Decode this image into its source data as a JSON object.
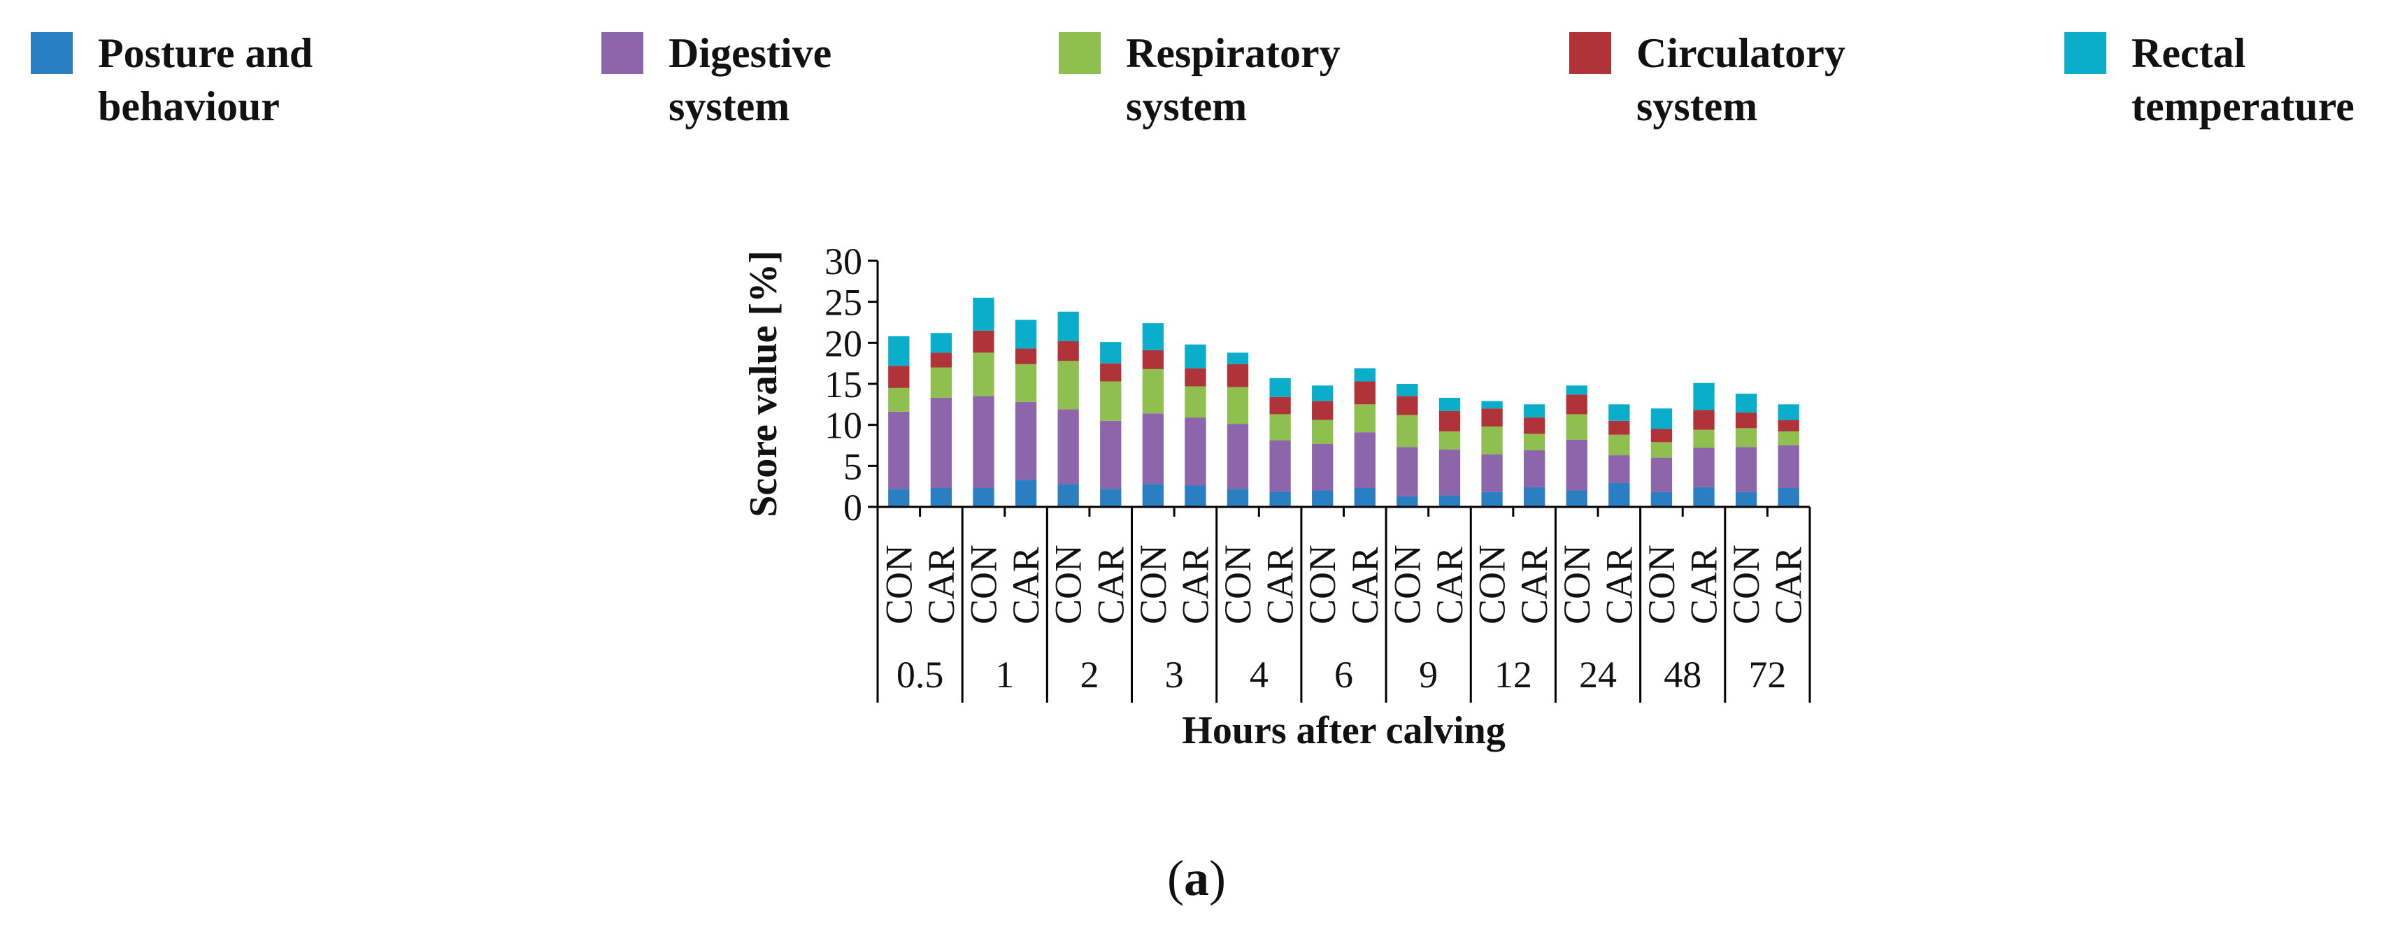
{
  "chart_data": {
    "type": "bar",
    "stacked": true,
    "ylabel": "Score value [%]",
    "xlabel": "Hours after calving",
    "ylim": [
      0,
      30
    ],
    "yticks": [
      "0",
      "5",
      "10",
      "15",
      "20",
      "25",
      "30"
    ],
    "groups": [
      "0.5",
      "1",
      "2",
      "3",
      "4",
      "6",
      "9",
      "12",
      "24",
      "48",
      "72"
    ],
    "subcategories": [
      "CON",
      "CAR"
    ],
    "series": [
      {
        "name": "Posture and behaviour",
        "color": "#2a7ec2",
        "values": [
          2.2,
          2.3,
          2.3,
          3.3,
          2.8,
          2.2,
          2.8,
          2.6,
          2.2,
          1.9,
          2.0,
          2.3,
          1.3,
          1.4,
          1.8,
          2.4,
          2.0,
          2.9,
          1.8,
          2.4,
          1.8,
          2.3
        ]
      },
      {
        "name": "Digestive system",
        "color": "#8c65ab",
        "values": [
          9.4,
          11.0,
          11.2,
          9.5,
          9.1,
          8.3,
          8.6,
          8.3,
          7.9,
          6.2,
          5.7,
          6.8,
          6.0,
          5.6,
          4.6,
          4.5,
          6.2,
          3.4,
          4.2,
          4.8,
          5.5,
          5.2
        ]
      },
      {
        "name": "Respiratory system",
        "color": "#8fbf4f",
        "values": [
          2.9,
          3.7,
          5.3,
          4.6,
          5.9,
          4.8,
          5.4,
          3.8,
          4.5,
          3.2,
          2.9,
          3.4,
          3.9,
          2.2,
          3.4,
          2.0,
          3.1,
          2.5,
          1.9,
          2.2,
          2.3,
          1.7
        ]
      },
      {
        "name": "Circulatory system",
        "color": "#b0333a",
        "values": [
          2.7,
          1.8,
          2.7,
          1.9,
          2.4,
          2.2,
          2.3,
          2.2,
          2.8,
          2.1,
          2.3,
          2.8,
          2.3,
          2.5,
          2.2,
          2.0,
          2.4,
          1.7,
          1.6,
          2.4,
          1.9,
          1.4
        ]
      },
      {
        "name": "Rectal temperature",
        "color": "#0aaecb",
        "values": [
          3.6,
          2.4,
          4.0,
          3.5,
          3.6,
          2.6,
          3.3,
          2.9,
          1.4,
          2.3,
          1.9,
          1.6,
          1.5,
          1.6,
          0.9,
          1.6,
          1.1,
          2.0,
          2.5,
          3.3,
          2.3,
          1.9
        ]
      }
    ]
  },
  "caption": {
    "open": "(",
    "letter": "a",
    "close": ")"
  }
}
